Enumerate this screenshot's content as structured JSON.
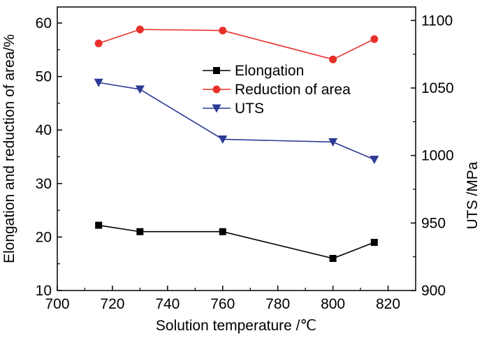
{
  "chart_data": {
    "type": "line",
    "x": [
      715,
      730,
      760,
      800,
      815
    ],
    "series": [
      {
        "name": "Elongation",
        "axis": "left",
        "color": "#000000",
        "marker": "square",
        "values": [
          22.2,
          21.0,
          21.0,
          16.0,
          19.0
        ]
      },
      {
        "name": "Reduction of area",
        "axis": "left",
        "color": "#e8302a",
        "marker": "circle",
        "values": [
          56.2,
          58.8,
          58.6,
          53.2,
          57.0
        ]
      },
      {
        "name": "UTS",
        "axis": "right",
        "color": "#2e3a96",
        "marker": "triangle-down",
        "values": [
          1054,
          1049,
          1012,
          1010,
          997
        ]
      }
    ],
    "xlabel": "Solution temperature /℃",
    "ylabel_left": "Elongation and reduction of area/%",
    "ylabel_right": "UTS /MPa",
    "xlim": [
      700,
      830
    ],
    "ylim_left": [
      10,
      63
    ],
    "ylim_right": [
      900,
      1110
    ],
    "xticks": [
      "700",
      "720",
      "740",
      "760",
      "780",
      "800",
      "820"
    ],
    "yticks_left": [
      "10",
      "20",
      "30",
      "40",
      "50",
      "60"
    ],
    "yticks_right": [
      "900",
      "950",
      "1000",
      "1050",
      "1100"
    ],
    "legend_position": "center-right",
    "grid": false
  }
}
